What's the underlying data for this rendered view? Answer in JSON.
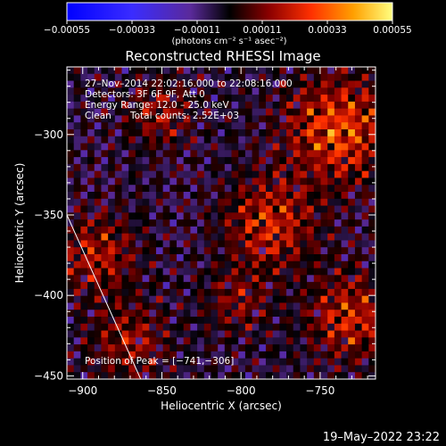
{
  "chart_data": {
    "type": "heatmap",
    "title": "Reconstructed RHESSI Image",
    "xlabel": "Heliocentric X (arcsec)",
    "ylabel": "Heliocentric Y (arcsec)",
    "xlim": [
      -910,
      -715
    ],
    "ylim": [
      -452,
      -258
    ],
    "x_ticks": [
      -900,
      -850,
      -800,
      -750
    ],
    "x_tick_labels": [
      "−900",
      "−850",
      "−800",
      "−750"
    ],
    "y_ticks": [
      -450,
      -400,
      -350,
      -300
    ],
    "y_tick_labels": [
      "−450",
      "−400",
      "−350",
      "−300"
    ],
    "colorbar": {
      "min": -0.00055,
      "max": 0.00055,
      "ticks": [
        -0.00055,
        -0.00033,
        -0.00011,
        0.00011,
        0.00033,
        0.00055
      ],
      "tick_labels": [
        "−0.00055",
        "−0.00033",
        "−0.00011",
        "0.00011",
        "0.00033",
        "0.00055"
      ],
      "unit_label": "(photons cm⁻² s⁻¹ asec⁻²)"
    },
    "annotations": [
      "27–Nov–2014 22:02:16.000 to 22:08:16.000",
      "Detectors: 3F 6F 9F, Att 0",
      "Energy Range: 12.0 – 25.0 keV",
      "Clean",
      "Total counts: 2.52E+03"
    ],
    "peak_label": "Position of Peak = [−741,−306]",
    "peak": [
      -741,
      -306
    ],
    "limb_line": [
      [
        -910,
        -350
      ],
      [
        -862,
        -455
      ]
    ],
    "grid": false
  },
  "footer": {
    "timestamp": "19–May–2022 23:22"
  }
}
